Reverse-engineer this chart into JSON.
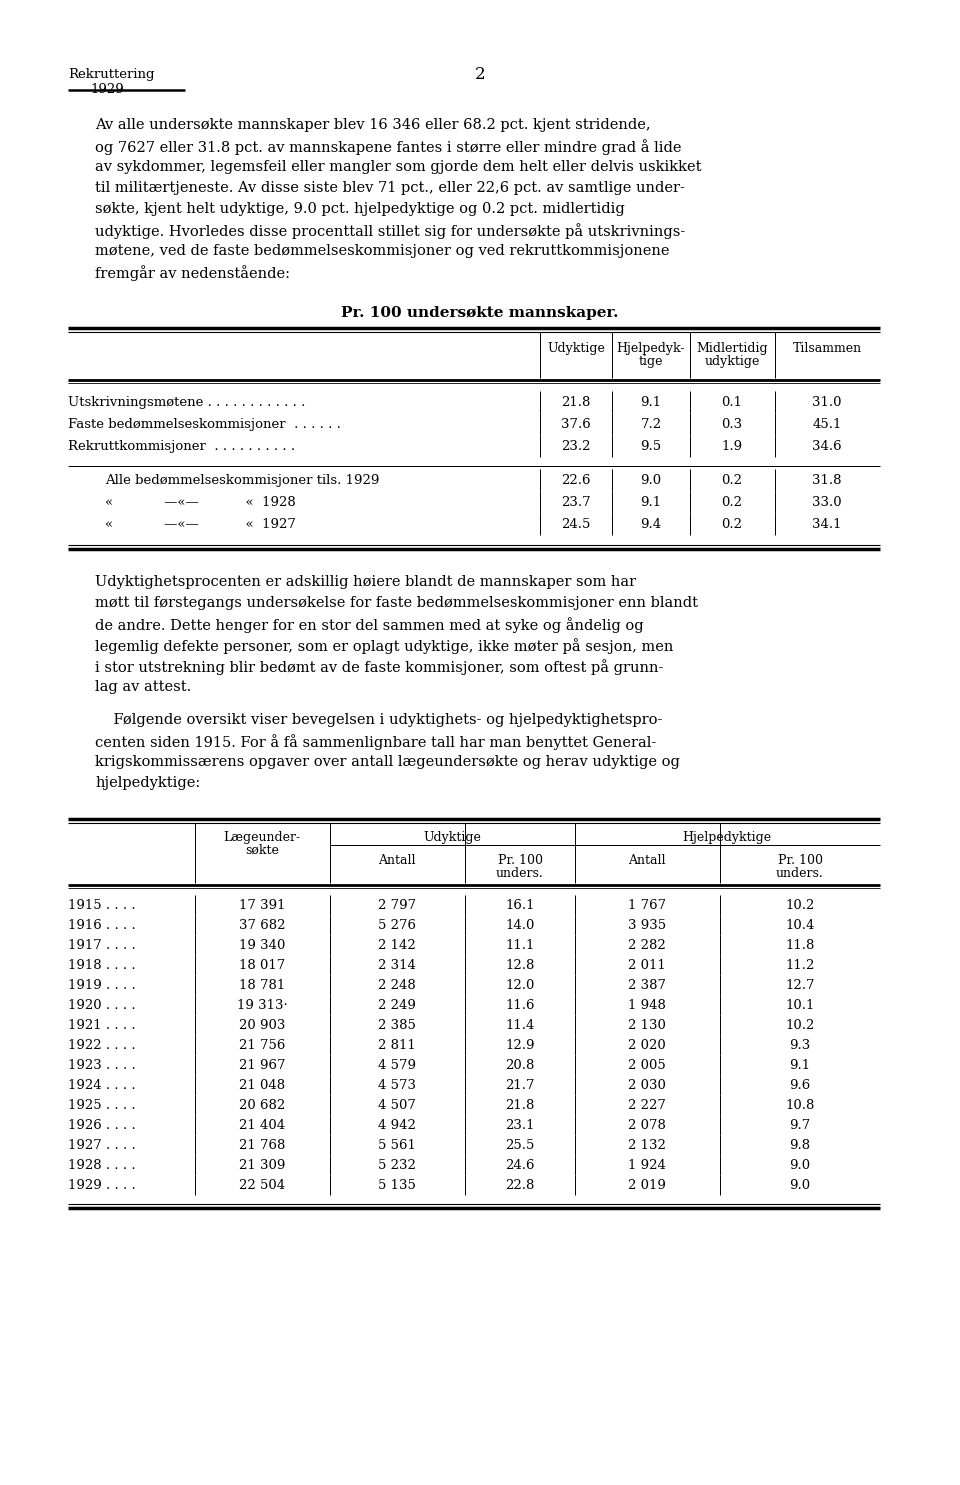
{
  "bg_color": "#ffffff",
  "text_color": "#000000",
  "header_rekruttering": "Rekruttering",
  "header_1929": "1929",
  "header_page": "2",
  "para1_lines": [
    "Av alle undersøkte mannskaper blev 16 346 eller 68.2 pct. kjent stridende,",
    "og 7627 eller 31.8 pct. av mannskapene fantes i større eller mindre grad å lide",
    "av sykdommer, legemsfeil eller mangler som gjorde dem helt eller delvis uskikket",
    "til militærtjeneste. Av disse siste blev 71 pct., eller 22,6 pct. av samtlige under-",
    "søkte, kjent helt udyktige, 9.0 pct. hjelpedyktige og 0.2 pct. midlertidig",
    "udyktige. Hvorledes disse procenttall stillet sig for undersøkte på utskrivnings-",
    "møtene, ved de faste bedømmelseskommisjoner og ved rekruttkommisjonene",
    "fremgår av nedenstående:"
  ],
  "table1_title": "Pr. 100 undersøkte mannskaper.",
  "table1_main_rows": [
    [
      "Utskrivningsmøtene . . . . . . . . . . . .",
      "21.8",
      "9.1",
      "0.1",
      "31.0"
    ],
    [
      "Faste bedømmelseskommisjoner  . . . . . .",
      "37.6",
      "7.2",
      "0.3",
      "45.1"
    ],
    [
      "Rekruttkommisjoner  . . . . . . . . . .",
      "23.2",
      "9.5",
      "1.9",
      "34.6"
    ]
  ],
  "table1_sub_rows": [
    [
      "Alle bedømmelseskommisjoner tils. 1929",
      "22.6",
      "9.0",
      "0.2",
      "31.8"
    ],
    [
      "«            —«—           «  1928",
      "23.7",
      "9.1",
      "0.2",
      "33.0"
    ],
    [
      "«            —«—           «  1927",
      "24.5",
      "9.4",
      "0.2",
      "34.1"
    ]
  ],
  "para2_lines": [
    "Udyktighetsprocenten er adskillig høiere blandt de mannskaper som har",
    "møtt til førstegangs undersøkelse for faste bedømmelseskommisjoner enn blandt",
    "de andre. Dette henger for en stor del sammen med at syke og åndelig og",
    "legemlig defekte personer, som er oplagt udyktige, ikke møter på sesjon, men",
    "i stor utstrekning blir bedømt av de faste kommisjoner, som oftest på grunn-",
    "lag av attest."
  ],
  "para3_lines": [
    "    Følgende oversikt viser bevegelsen i udyktighets- og hjelpedyktighetspro-",
    "centen siden 1915. For å få sammenlignbare tall har man benyttet General-",
    "krigskommissærens opgaver over antall lægeundersøkte og herav udyktige og",
    "hjelpedyktige:"
  ],
  "table2_rows": [
    [
      "1915 . . . .",
      "17 391",
      "2 797",
      "16.1",
      "1 767",
      "10.2"
    ],
    [
      "1916 . . . .",
      "37 682",
      "5 276",
      "14.0",
      "3 935",
      "10.4"
    ],
    [
      "1917 . . . .",
      "19 340",
      "2 142",
      "11.1",
      "2 282",
      "11.8"
    ],
    [
      "1918 . . . .",
      "18 017",
      "2 314",
      "12.8",
      "2 011",
      "11.2"
    ],
    [
      "1919 . . . .",
      "18 781",
      "2 248",
      "12.0",
      "2 387",
      "12.7"
    ],
    [
      "1920 . . . .",
      "19 313·",
      "2 249",
      "11.6",
      "1 948",
      "10.1"
    ],
    [
      "1921 . . . .",
      "20 903",
      "2 385",
      "11.4",
      "2 130",
      "10.2"
    ],
    [
      "1922 . . . .",
      "21 756",
      "2 811",
      "12.9",
      "2 020",
      "9.3"
    ],
    [
      "1923 . . . .",
      "21 967",
      "4 579",
      "20.8",
      "2 005",
      "9.1"
    ],
    [
      "1924 . . . .",
      "21 048",
      "4 573",
      "21.7",
      "2 030",
      "9.6"
    ],
    [
      "1925 . . . .",
      "20 682",
      "4 507",
      "21.8",
      "2 227",
      "10.8"
    ],
    [
      "1926 . . . .",
      "21 404",
      "4 942",
      "23.1",
      "2 078",
      "9.7"
    ],
    [
      "1927 . . . .",
      "21 768",
      "5 561",
      "25.5",
      "2 132",
      "9.8"
    ],
    [
      "1928 . . . .",
      "21 309",
      "5 232",
      "24.6",
      "1 924",
      "9.0"
    ],
    [
      "1929 . . . .",
      "22 504",
      "5 135",
      "22.8",
      "2 019",
      "9.0"
    ]
  ]
}
